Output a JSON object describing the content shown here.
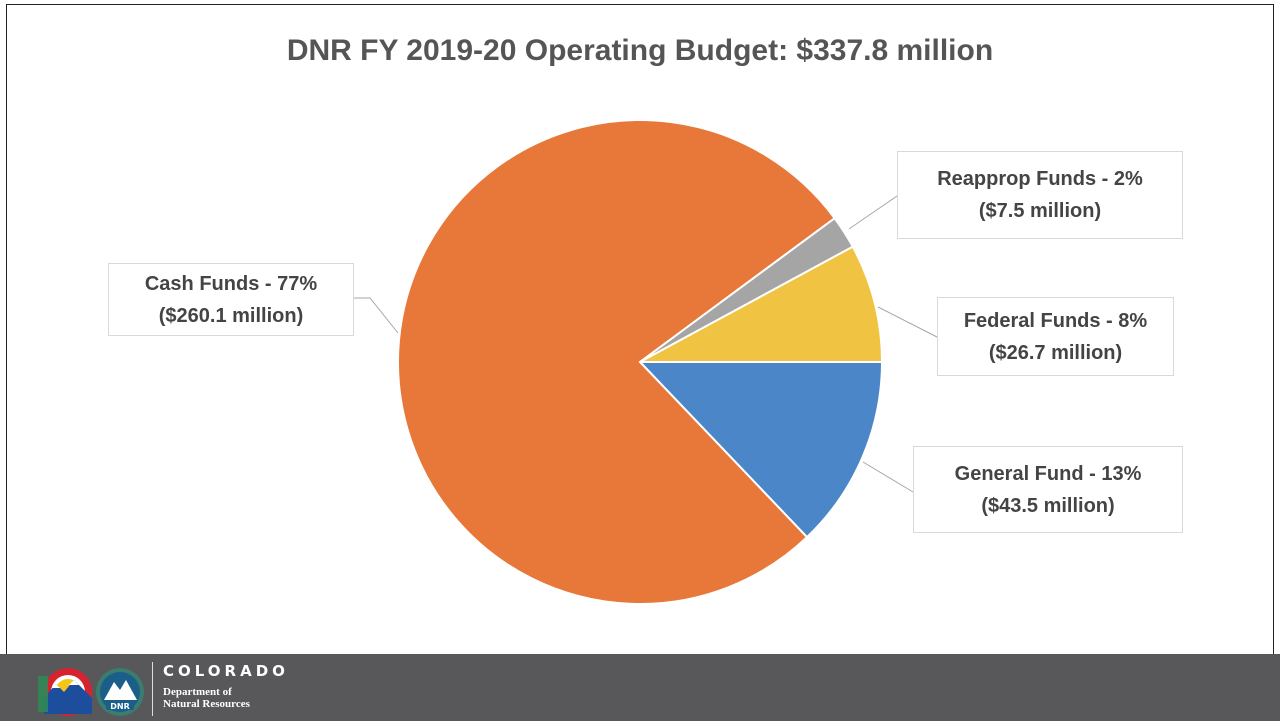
{
  "chart_data": {
    "type": "pie",
    "title": "DNR FY 2019-20 Operating Budget: $337.8 million",
    "slices": [
      {
        "name": "General Fund",
        "value": 43.5,
        "percent": 13,
        "label_line1": "General Fund - 13%",
        "label_line2": "($43.5 million)",
        "color": "#4a86c8"
      },
      {
        "name": "Cash Funds",
        "value": 260.1,
        "percent": 77,
        "label_line1": "Cash Funds - 77%",
        "label_line2": "($260.1 million)",
        "color": "#e8773a"
      },
      {
        "name": "Reapprop Funds",
        "value": 7.5,
        "percent": 2,
        "label_line1": "Reapprop Funds - 2%",
        "label_line2": "($7.5 million)",
        "color": "#a5a5a5"
      },
      {
        "name": "Federal Funds",
        "value": 26.7,
        "percent": 8,
        "label_line1": "Federal Funds - 8%",
        "label_line2": "($26.7 million)",
        "color": "#f0c342"
      }
    ]
  },
  "footer": {
    "state_name": "COLORADO",
    "dept_line1": "Department of",
    "dept_line2": "Natural Resources",
    "logo_badge_text": "DNR",
    "bar_color": "#58575a"
  }
}
